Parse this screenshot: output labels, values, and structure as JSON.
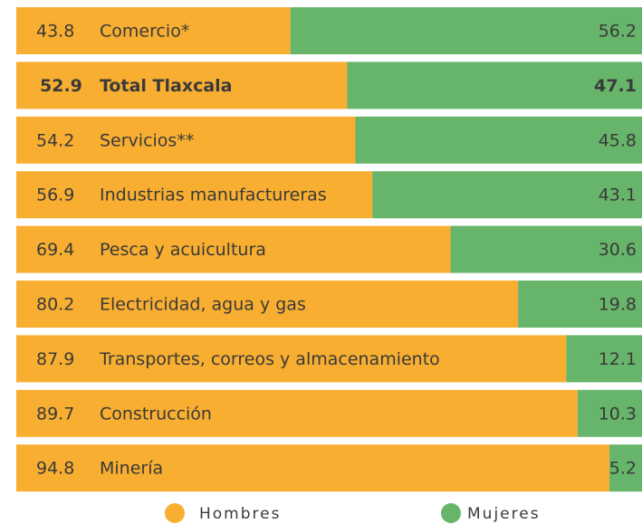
{
  "chart_data": {
    "type": "stacked_bar_horizontal",
    "categories": [
      "Comercio*",
      "Total Tlaxcala",
      "Servicios**",
      "Industrias manufactureras",
      "Pesca y acuicultura",
      "Electricidad, agua y gas",
      "Transportes, correos y almacenamiento",
      "Construcción",
      "Minería"
    ],
    "bold": [
      false,
      true,
      false,
      false,
      false,
      false,
      false,
      false,
      false
    ],
    "series": [
      {
        "name": "Hombres",
        "color": "#f8ae30",
        "values": [
          43.8,
          52.9,
          54.2,
          56.9,
          69.4,
          80.2,
          87.9,
          89.7,
          94.8
        ]
      },
      {
        "name": "Mujeres",
        "color": "#66b56a",
        "values": [
          56.2,
          47.1,
          45.8,
          43.1,
          30.6,
          19.8,
          12.1,
          10.3,
          5.2
        ]
      }
    ],
    "xlim": [
      0,
      100
    ]
  }
}
